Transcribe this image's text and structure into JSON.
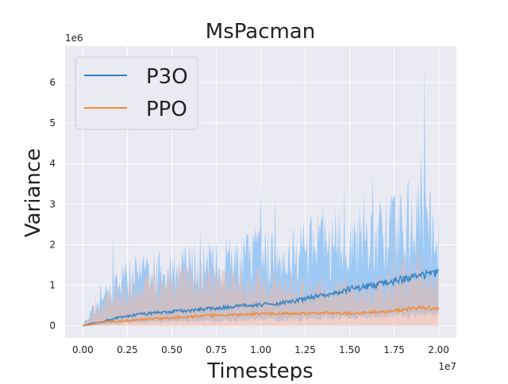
{
  "chart_data": {
    "type": "line",
    "title": "MsPacman",
    "xlabel": "Timesteps",
    "ylabel": "Variance",
    "x_offset_label": "1e7",
    "y_offset_label": "1e6",
    "xlim": [
      -0.1,
      2.1
    ],
    "ylim": [
      -0.3,
      6.9
    ],
    "x_ticks": [
      0.0,
      0.25,
      0.5,
      0.75,
      1.0,
      1.25,
      1.5,
      1.75,
      2.0
    ],
    "x_tick_labels": [
      "0.00",
      "0.25",
      "0.50",
      "0.75",
      "1.00",
      "1.25",
      "1.50",
      "1.75",
      "2.00"
    ],
    "y_ticks": [
      0,
      1,
      2,
      3,
      4,
      5,
      6
    ],
    "y_tick_labels": [
      "0",
      "1",
      "2",
      "3",
      "4",
      "5",
      "6"
    ],
    "grid": true,
    "legend_position": "upper-left",
    "series": [
      {
        "name": "P3O",
        "color": "#2f7fc1",
        "band_color": "#90c3f4",
        "x": [
          0.0,
          0.1,
          0.2,
          0.3,
          0.4,
          0.5,
          0.6,
          0.7,
          0.8,
          0.9,
          1.0,
          1.1,
          1.2,
          1.3,
          1.4,
          1.5,
          1.6,
          1.7,
          1.8,
          1.9,
          2.0
        ],
        "mean": [
          0.0,
          0.1,
          0.2,
          0.28,
          0.32,
          0.35,
          0.38,
          0.42,
          0.45,
          0.5,
          0.52,
          0.55,
          0.62,
          0.72,
          0.8,
          0.9,
          0.98,
          1.05,
          1.15,
          1.25,
          1.3
        ],
        "upper": [
          0.05,
          0.6,
          1.1,
          1.25,
          1.3,
          1.4,
          1.45,
          1.5,
          1.55,
          1.6,
          1.7,
          1.75,
          1.85,
          1.95,
          2.0,
          2.1,
          2.2,
          2.3,
          2.4,
          2.6,
          2.3
        ],
        "lower": [
          0.0,
          0.02,
          0.05,
          0.08,
          0.1,
          0.1,
          0.12,
          0.12,
          0.12,
          0.14,
          0.15,
          0.15,
          0.16,
          0.18,
          0.2,
          0.2,
          0.22,
          0.22,
          0.24,
          0.26,
          0.28
        ],
        "spikes": [
          {
            "x": 0.1,
            "y": 1.1
          },
          {
            "x": 0.17,
            "y": 2.25
          },
          {
            "x": 0.4,
            "y": 1.9
          },
          {
            "x": 0.53,
            "y": 1.5
          },
          {
            "x": 0.66,
            "y": 2.35
          },
          {
            "x": 0.72,
            "y": 2.0
          },
          {
            "x": 1.0,
            "y": 3.5
          },
          {
            "x": 1.08,
            "y": 3.2
          },
          {
            "x": 1.35,
            "y": 3.0
          },
          {
            "x": 1.47,
            "y": 3.45
          },
          {
            "x": 1.58,
            "y": 3.3
          },
          {
            "x": 1.63,
            "y": 3.8
          },
          {
            "x": 1.67,
            "y": 3.1
          },
          {
            "x": 1.83,
            "y": 3.6
          },
          {
            "x": 1.9,
            "y": 4.35
          },
          {
            "x": 1.92,
            "y": 6.6
          },
          {
            "x": 1.95,
            "y": 3.3
          }
        ]
      },
      {
        "name": "PPO",
        "color": "#f28a31",
        "band_color": "#f2b8a4",
        "x": [
          0.0,
          0.1,
          0.2,
          0.3,
          0.4,
          0.5,
          0.6,
          0.7,
          0.8,
          0.9,
          1.0,
          1.1,
          1.2,
          1.3,
          1.4,
          1.5,
          1.6,
          1.7,
          1.8,
          1.9,
          2.0
        ],
        "mean": [
          0.0,
          0.08,
          0.12,
          0.15,
          0.18,
          0.2,
          0.22,
          0.25,
          0.27,
          0.28,
          0.3,
          0.3,
          0.3,
          0.32,
          0.32,
          0.3,
          0.33,
          0.35,
          0.4,
          0.45,
          0.42
        ],
        "upper": [
          0.02,
          0.5,
          0.8,
          0.95,
          1.0,
          1.05,
          1.1,
          1.1,
          1.05,
          1.0,
          1.0,
          0.95,
          0.9,
          0.88,
          0.85,
          0.85,
          0.9,
          1.0,
          1.2,
          1.3,
          1.1
        ],
        "lower": [
          0.0,
          0.0,
          0.0,
          0.0,
          0.0,
          0.0,
          0.0,
          0.0,
          0.0,
          0.0,
          0.0,
          0.0,
          0.0,
          0.0,
          0.0,
          0.0,
          0.0,
          0.0,
          0.0,
          0.0,
          0.0
        ],
        "spikes": [
          {
            "x": 0.07,
            "y": 0.8
          },
          {
            "x": 0.55,
            "y": 1.2
          },
          {
            "x": 0.67,
            "y": 1.5
          },
          {
            "x": 0.85,
            "y": 1.4
          },
          {
            "x": 1.75,
            "y": 2.9
          },
          {
            "x": 1.88,
            "y": 2.2
          }
        ]
      }
    ]
  }
}
